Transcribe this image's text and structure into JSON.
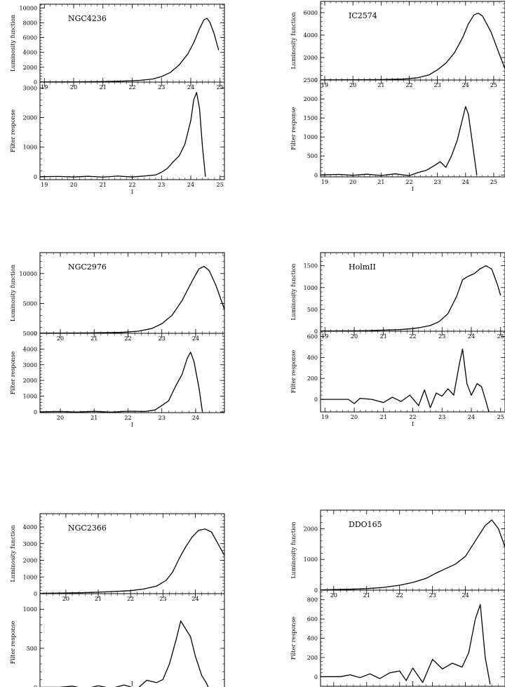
{
  "chart_data": [
    {
      "type": "line",
      "galaxy": "NGC4236",
      "luminosity_function": {
        "ylabel": "Luminosity function",
        "xlim": [
          18.85,
          25.15
        ],
        "ylim": [
          0,
          10500
        ],
        "yticks": [
          0,
          2000,
          4000,
          6000,
          8000,
          10000
        ],
        "xticks": [
          19,
          20,
          21,
          22,
          23,
          24,
          25
        ],
        "points": [
          [
            18.85,
            20
          ],
          [
            20,
            40
          ],
          [
            21,
            70
          ],
          [
            21.8,
            150
          ],
          [
            22.3,
            250
          ],
          [
            22.7,
            420
          ],
          [
            23.0,
            750
          ],
          [
            23.3,
            1300
          ],
          [
            23.6,
            2300
          ],
          [
            23.9,
            3800
          ],
          [
            24.1,
            5300
          ],
          [
            24.3,
            7200
          ],
          [
            24.45,
            8400
          ],
          [
            24.55,
            8600
          ],
          [
            24.65,
            8100
          ],
          [
            24.8,
            6500
          ],
          [
            24.95,
            4300
          ]
        ]
      },
      "filter_response": {
        "ylabel": "Filter response",
        "xlabel": "I",
        "xlim": [
          18.85,
          25.15
        ],
        "ylim": [
          -100,
          3200
        ],
        "yticks": [
          0,
          1000,
          2000,
          3000
        ],
        "xticks": [
          19,
          20,
          21,
          22,
          23,
          24,
          25
        ],
        "points": [
          [
            18.85,
            0
          ],
          [
            19.5,
            10
          ],
          [
            20.0,
            -10
          ],
          [
            20.5,
            15
          ],
          [
            21.0,
            -15
          ],
          [
            21.5,
            20
          ],
          [
            22.0,
            -10
          ],
          [
            22.5,
            30
          ],
          [
            22.8,
            60
          ],
          [
            23.0,
            150
          ],
          [
            23.2,
            280
          ],
          [
            23.4,
            500
          ],
          [
            23.6,
            700
          ],
          [
            23.8,
            1100
          ],
          [
            24.0,
            1900
          ],
          [
            24.1,
            2600
          ],
          [
            24.2,
            2850
          ],
          [
            24.3,
            2300
          ],
          [
            24.4,
            1000
          ],
          [
            24.5,
            0
          ]
        ]
      }
    },
    {
      "type": "line",
      "galaxy": "IC2574",
      "luminosity_function": {
        "ylabel": "Luminosity function",
        "xlim": [
          18.85,
          25.4
        ],
        "ylim": [
          0,
          7000
        ],
        "yticks": [
          0,
          2000,
          4000,
          6000
        ],
        "xticks": [
          19,
          20,
          21,
          22,
          23,
          24,
          25
        ],
        "points": [
          [
            18.85,
            10
          ],
          [
            20,
            20
          ],
          [
            21,
            40
          ],
          [
            21.8,
            90
          ],
          [
            22.3,
            200
          ],
          [
            22.7,
            450
          ],
          [
            23.0,
            900
          ],
          [
            23.3,
            1500
          ],
          [
            23.6,
            2400
          ],
          [
            23.9,
            3800
          ],
          [
            24.1,
            5000
          ],
          [
            24.3,
            5800
          ],
          [
            24.45,
            5950
          ],
          [
            24.6,
            5700
          ],
          [
            24.9,
            4300
          ],
          [
            25.2,
            2300
          ],
          [
            25.4,
            1000
          ]
        ]
      },
      "filter_response": {
        "ylabel": "Filter response",
        "xlabel": "I",
        "xlim": [
          18.85,
          25.4
        ],
        "ylim": [
          -50,
          2500
        ],
        "yticks": [
          0,
          500,
          1000,
          1500,
          2000,
          2500
        ],
        "xticks": [
          19,
          20,
          21,
          22,
          23,
          24,
          25
        ],
        "points": [
          [
            18.85,
            0
          ],
          [
            19.5,
            15
          ],
          [
            20,
            -10
          ],
          [
            20.5,
            20
          ],
          [
            21,
            -15
          ],
          [
            21.5,
            30
          ],
          [
            22,
            -20
          ],
          [
            22.3,
            60
          ],
          [
            22.6,
            120
          ],
          [
            22.9,
            250
          ],
          [
            23.1,
            350
          ],
          [
            23.3,
            200
          ],
          [
            23.5,
            500
          ],
          [
            23.7,
            900
          ],
          [
            23.9,
            1500
          ],
          [
            24.0,
            1800
          ],
          [
            24.1,
            1600
          ],
          [
            24.25,
            800
          ],
          [
            24.4,
            0
          ]
        ]
      }
    },
    {
      "type": "line",
      "galaxy": "NGC2976",
      "luminosity_function": {
        "ylabel": "Luminosity function",
        "xlim": [
          19.4,
          24.85
        ],
        "ylim": [
          0,
          13500
        ],
        "yticks": [
          0,
          5000,
          10000
        ],
        "xticks": [
          20,
          21,
          22,
          23,
          24
        ],
        "points": [
          [
            19.4,
            30
          ],
          [
            20,
            50
          ],
          [
            21,
            80
          ],
          [
            21.8,
            150
          ],
          [
            22.3,
            350
          ],
          [
            22.7,
            800
          ],
          [
            23.0,
            1600
          ],
          [
            23.3,
            3000
          ],
          [
            23.6,
            5500
          ],
          [
            23.9,
            8800
          ],
          [
            24.1,
            10800
          ],
          [
            24.25,
            11200
          ],
          [
            24.4,
            10500
          ],
          [
            24.6,
            8000
          ],
          [
            24.85,
            4000
          ]
        ]
      },
      "filter_response": {
        "ylabel": "Filter response",
        "xlabel": "I",
        "xlim": [
          19.4,
          24.85
        ],
        "ylim": [
          -50,
          5000
        ],
        "yticks": [
          0,
          1000,
          2000,
          3000,
          4000,
          5000
        ],
        "xticks": [
          20,
          21,
          22,
          23,
          24
        ],
        "points": [
          [
            19.4,
            0
          ],
          [
            20,
            20
          ],
          [
            20.5,
            -10
          ],
          [
            21,
            30
          ],
          [
            21.5,
            -20
          ],
          [
            22,
            40
          ],
          [
            22.5,
            20
          ],
          [
            22.8,
            120
          ],
          [
            23.0,
            400
          ],
          [
            23.2,
            700
          ],
          [
            23.4,
            1600
          ],
          [
            23.6,
            2400
          ],
          [
            23.75,
            3400
          ],
          [
            23.85,
            3800
          ],
          [
            23.95,
            3200
          ],
          [
            24.1,
            1500
          ],
          [
            24.2,
            0
          ]
        ]
      }
    },
    {
      "type": "line",
      "galaxy": "HolmII",
      "luminosity_function": {
        "ylabel": "Luminosity function",
        "xlim": [
          18.85,
          25.15
        ],
        "ylim": [
          0,
          1800
        ],
        "yticks": [
          0,
          500,
          1000,
          1500
        ],
        "xticks": [
          19,
          20,
          21,
          22,
          23,
          24,
          25
        ],
        "points": [
          [
            18.85,
            5
          ],
          [
            19.5,
            8
          ],
          [
            20,
            10
          ],
          [
            20.5,
            15
          ],
          [
            21,
            25
          ],
          [
            21.5,
            35
          ],
          [
            22,
            60
          ],
          [
            22.3,
            90
          ],
          [
            22.6,
            130
          ],
          [
            22.9,
            220
          ],
          [
            23.2,
            400
          ],
          [
            23.5,
            800
          ],
          [
            23.7,
            1180
          ],
          [
            23.9,
            1260
          ],
          [
            24.1,
            1320
          ],
          [
            24.3,
            1430
          ],
          [
            24.5,
            1500
          ],
          [
            24.7,
            1420
          ],
          [
            24.9,
            1050
          ],
          [
            25.0,
            820
          ]
        ]
      },
      "filter_response": {
        "ylabel": "Filter response",
        "xlabel": "I",
        "xlim": [
          18.85,
          25.15
        ],
        "ylim": [
          -120,
          650
        ],
        "yticks": [
          0,
          200,
          400,
          600
        ],
        "xticks": [
          19,
          20,
          21,
          22,
          23,
          24,
          25
        ],
        "points": [
          [
            18.85,
            0
          ],
          [
            19.8,
            0
          ],
          [
            20.0,
            -40
          ],
          [
            20.2,
            10
          ],
          [
            20.6,
            0
          ],
          [
            21.0,
            -30
          ],
          [
            21.3,
            20
          ],
          [
            21.6,
            -20
          ],
          [
            21.9,
            40
          ],
          [
            22.2,
            -60
          ],
          [
            22.4,
            90
          ],
          [
            22.6,
            -80
          ],
          [
            22.8,
            60
          ],
          [
            23.0,
            30
          ],
          [
            23.2,
            100
          ],
          [
            23.4,
            40
          ],
          [
            23.6,
            350
          ],
          [
            23.7,
            480
          ],
          [
            23.85,
            150
          ],
          [
            24.0,
            40
          ],
          [
            24.2,
            150
          ],
          [
            24.35,
            120
          ],
          [
            24.5,
            -20
          ],
          [
            24.6,
            -120
          ]
        ]
      }
    },
    {
      "type": "line",
      "galaxy": "NGC2366",
      "luminosity_function": {
        "ylabel": "Luminosity function",
        "xlim": [
          19.2,
          24.9
        ],
        "ylim": [
          0,
          4800
        ],
        "yticks": [
          0,
          1000,
          2000,
          3000,
          4000
        ],
        "xticks": [
          20,
          21,
          22,
          23,
          24
        ],
        "points": [
          [
            19.2,
            20
          ],
          [
            20,
            40
          ],
          [
            20.5,
            60
          ],
          [
            21,
            90
          ],
          [
            21.5,
            130
          ],
          [
            22,
            180
          ],
          [
            22.4,
            280
          ],
          [
            22.8,
            450
          ],
          [
            23.1,
            800
          ],
          [
            23.3,
            1300
          ],
          [
            23.5,
            2100
          ],
          [
            23.7,
            2800
          ],
          [
            23.9,
            3400
          ],
          [
            24.1,
            3800
          ],
          [
            24.3,
            3880
          ],
          [
            24.5,
            3700
          ],
          [
            24.7,
            3000
          ],
          [
            24.9,
            2300
          ]
        ]
      },
      "filter_response": {
        "ylabel": "Filter response",
        "xlabel": "I",
        "xlim": [
          19.2,
          24.9
        ],
        "ylim": [
          -50,
          1200
        ],
        "yticks": [
          0,
          500,
          1000
        ],
        "xticks": [
          20,
          21,
          22,
          23,
          24
        ],
        "points": [
          [
            19.2,
            0
          ],
          [
            19.8,
            0
          ],
          [
            20.2,
            15
          ],
          [
            20.6,
            -20
          ],
          [
            21.0,
            20
          ],
          [
            21.4,
            -15
          ],
          [
            21.8,
            30
          ],
          [
            22.2,
            -20
          ],
          [
            22.5,
            90
          ],
          [
            22.8,
            60
          ],
          [
            23.0,
            100
          ],
          [
            23.2,
            300
          ],
          [
            23.4,
            600
          ],
          [
            23.55,
            850
          ],
          [
            23.7,
            750
          ],
          [
            23.85,
            650
          ],
          [
            24.0,
            400
          ],
          [
            24.2,
            150
          ],
          [
            24.35,
            50
          ],
          [
            24.45,
            -50
          ]
        ]
      }
    },
    {
      "type": "line",
      "galaxy": "DDO165",
      "luminosity_function": {
        "ylabel": "Luminosity function",
        "xlim": [
          19.6,
          25.2
        ],
        "ylim": [
          0,
          2600
        ],
        "yticks": [
          0,
          1000,
          2000
        ],
        "xticks": [
          20,
          21,
          22,
          23,
          24
        ],
        "points": [
          [
            19.6,
            10
          ],
          [
            20,
            20
          ],
          [
            20.5,
            30
          ],
          [
            21,
            50
          ],
          [
            21.5,
            90
          ],
          [
            22,
            160
          ],
          [
            22.4,
            250
          ],
          [
            22.8,
            380
          ],
          [
            23.1,
            550
          ],
          [
            23.4,
            700
          ],
          [
            23.7,
            850
          ],
          [
            24.0,
            1100
          ],
          [
            24.3,
            1600
          ],
          [
            24.6,
            2100
          ],
          [
            24.8,
            2280
          ],
          [
            25.0,
            2000
          ],
          [
            25.2,
            1400
          ]
        ]
      },
      "filter_response": {
        "ylabel": "Filter response",
        "xlabel": "I",
        "xlim": [
          19.6,
          25.2
        ],
        "ylim": [
          -100,
          900
        ],
        "yticks": [
          0,
          200,
          400,
          600,
          800
        ],
        "xticks": [
          20,
          21,
          22,
          23,
          24
        ],
        "points": [
          [
            19.6,
            0
          ],
          [
            20.2,
            0
          ],
          [
            20.5,
            20
          ],
          [
            20.8,
            -10
          ],
          [
            21.1,
            30
          ],
          [
            21.4,
            -20
          ],
          [
            21.7,
            40
          ],
          [
            22.0,
            60
          ],
          [
            22.2,
            -40
          ],
          [
            22.4,
            90
          ],
          [
            22.7,
            -60
          ],
          [
            23.0,
            180
          ],
          [
            23.3,
            80
          ],
          [
            23.6,
            140
          ],
          [
            23.9,
            100
          ],
          [
            24.1,
            250
          ],
          [
            24.3,
            600
          ],
          [
            24.45,
            750
          ],
          [
            24.6,
            200
          ],
          [
            24.75,
            -80
          ]
        ]
      }
    }
  ]
}
